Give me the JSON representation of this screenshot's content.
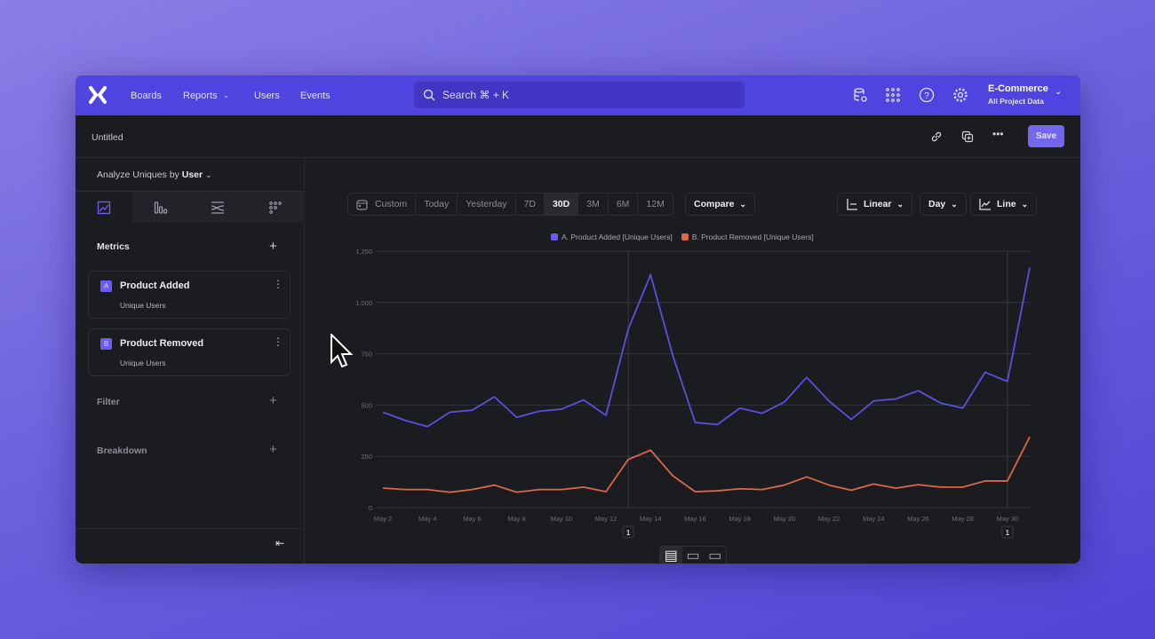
{
  "nav": {
    "items": [
      "Boards",
      "Reports",
      "Users",
      "Events"
    ],
    "search_placeholder": "Search  ⌘ + K",
    "project_name": "E-Commerce",
    "project_sub": "All Project Data"
  },
  "subheader": {
    "title": "Untitled",
    "save_label": "Save"
  },
  "left": {
    "analyze_prefix": "Analyze Uniques by",
    "analyze_value": "User",
    "metrics_label": "Metrics",
    "metrics": [
      {
        "letter": "A",
        "name": "Product Added",
        "sub": "Unique Users"
      },
      {
        "letter": "B",
        "name": "Product Removed",
        "sub": "Unique Users"
      }
    ],
    "filter_label": "Filter",
    "breakdown_label": "Breakdown"
  },
  "controls": {
    "ranges": [
      "Custom",
      "Today",
      "Yesterday",
      "7D",
      "30D",
      "3M",
      "6M",
      "12M"
    ],
    "active_range": "30D",
    "compare": "Compare",
    "scale": "Linear",
    "interval": "Day",
    "chart_type": "Line"
  },
  "colors": {
    "accent": "#4f44e0",
    "series_a": "#5b4fe0",
    "series_b": "#e0644a"
  },
  "chart_data": {
    "type": "line",
    "x": [
      "May 2",
      "May 3",
      "May 4",
      "May 5",
      "May 6",
      "May 7",
      "May 8",
      "May 9",
      "May 10",
      "May 11",
      "May 12",
      "May 13",
      "May 14",
      "May 15",
      "May 16",
      "May 17",
      "May 18",
      "May 19",
      "May 20",
      "May 21",
      "May 22",
      "May 23",
      "May 24",
      "May 25",
      "May 26",
      "May 27",
      "May 28",
      "May 29",
      "May 30",
      "May 31"
    ],
    "x_tick_labels": [
      "May 2",
      "May 4",
      "May 6",
      "May 8",
      "May 10",
      "May 12",
      "May 14",
      "May 16",
      "May 18",
      "May 20",
      "May 22",
      "May 24",
      "May 26",
      "May 28",
      "May 30"
    ],
    "y_tick_labels": [
      "0",
      "250",
      "500",
      "750",
      "1,000",
      "1,250"
    ],
    "ylim": [
      0,
      1250
    ],
    "grid": true,
    "legend": "top",
    "series": [
      {
        "name": "A. Product Added [Unique Users]",
        "values": [
          465,
          425,
          395,
          465,
          475,
          540,
          440,
          470,
          480,
          525,
          450,
          870,
          1135,
          740,
          415,
          405,
          485,
          460,
          515,
          635,
          520,
          430,
          520,
          530,
          570,
          510,
          485,
          660,
          615,
          1170
        ]
      },
      {
        "name": "B. Product Removed [Unique Users]",
        "values": [
          95,
          88,
          88,
          75,
          88,
          110,
          75,
          88,
          88,
          100,
          78,
          235,
          280,
          155,
          78,
          82,
          92,
          88,
          110,
          150,
          110,
          85,
          115,
          95,
          112,
          100,
          100,
          130,
          130,
          345
        ]
      }
    ],
    "annotations": [
      {
        "x": "May 13",
        "label": "1"
      },
      {
        "x": "May 30",
        "label": "1"
      }
    ]
  }
}
